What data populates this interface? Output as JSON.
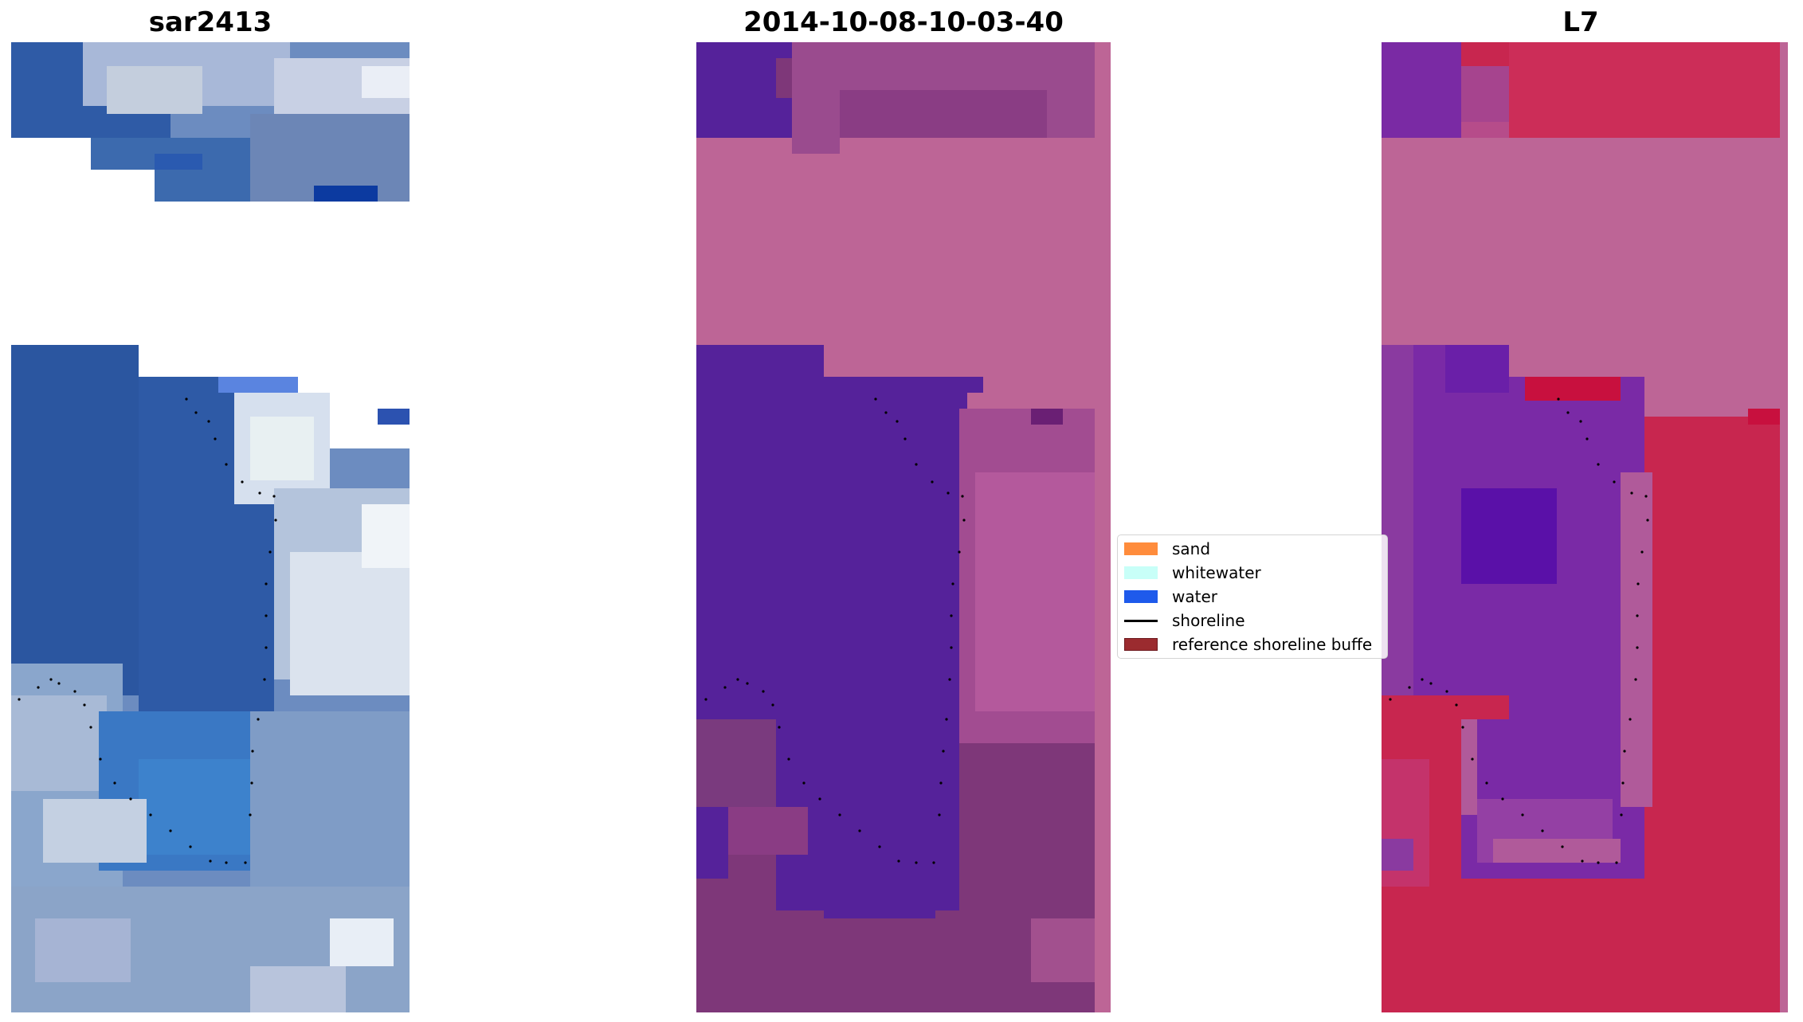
{
  "panels": [
    {
      "title": "sar2413"
    },
    {
      "title": "2014-10-08-10-03-40"
    },
    {
      "title": "L7"
    }
  ],
  "legend": {
    "items": [
      {
        "label": "sand",
        "color": "#ff8c3c"
      },
      {
        "label": "whitewater",
        "color": "#c8fff8"
      },
      {
        "label": "water",
        "color": "#1e5aeb"
      },
      {
        "label": "shoreline",
        "color": "#000000"
      },
      {
        "label": "reference shoreline buffe",
        "color": "#9b2b2f"
      }
    ]
  },
  "colors": {
    "rgb_water": "#2c5aa8",
    "rgb_land": "#8aa4cc",
    "class_water": "#55229a",
    "class_land": "#7e3779",
    "class_nodata": "#bd6596",
    "mndwi_water": "#6a1fa8",
    "mndwi_land": "#c8264f",
    "mndwi_nodata": "#bd6596"
  }
}
